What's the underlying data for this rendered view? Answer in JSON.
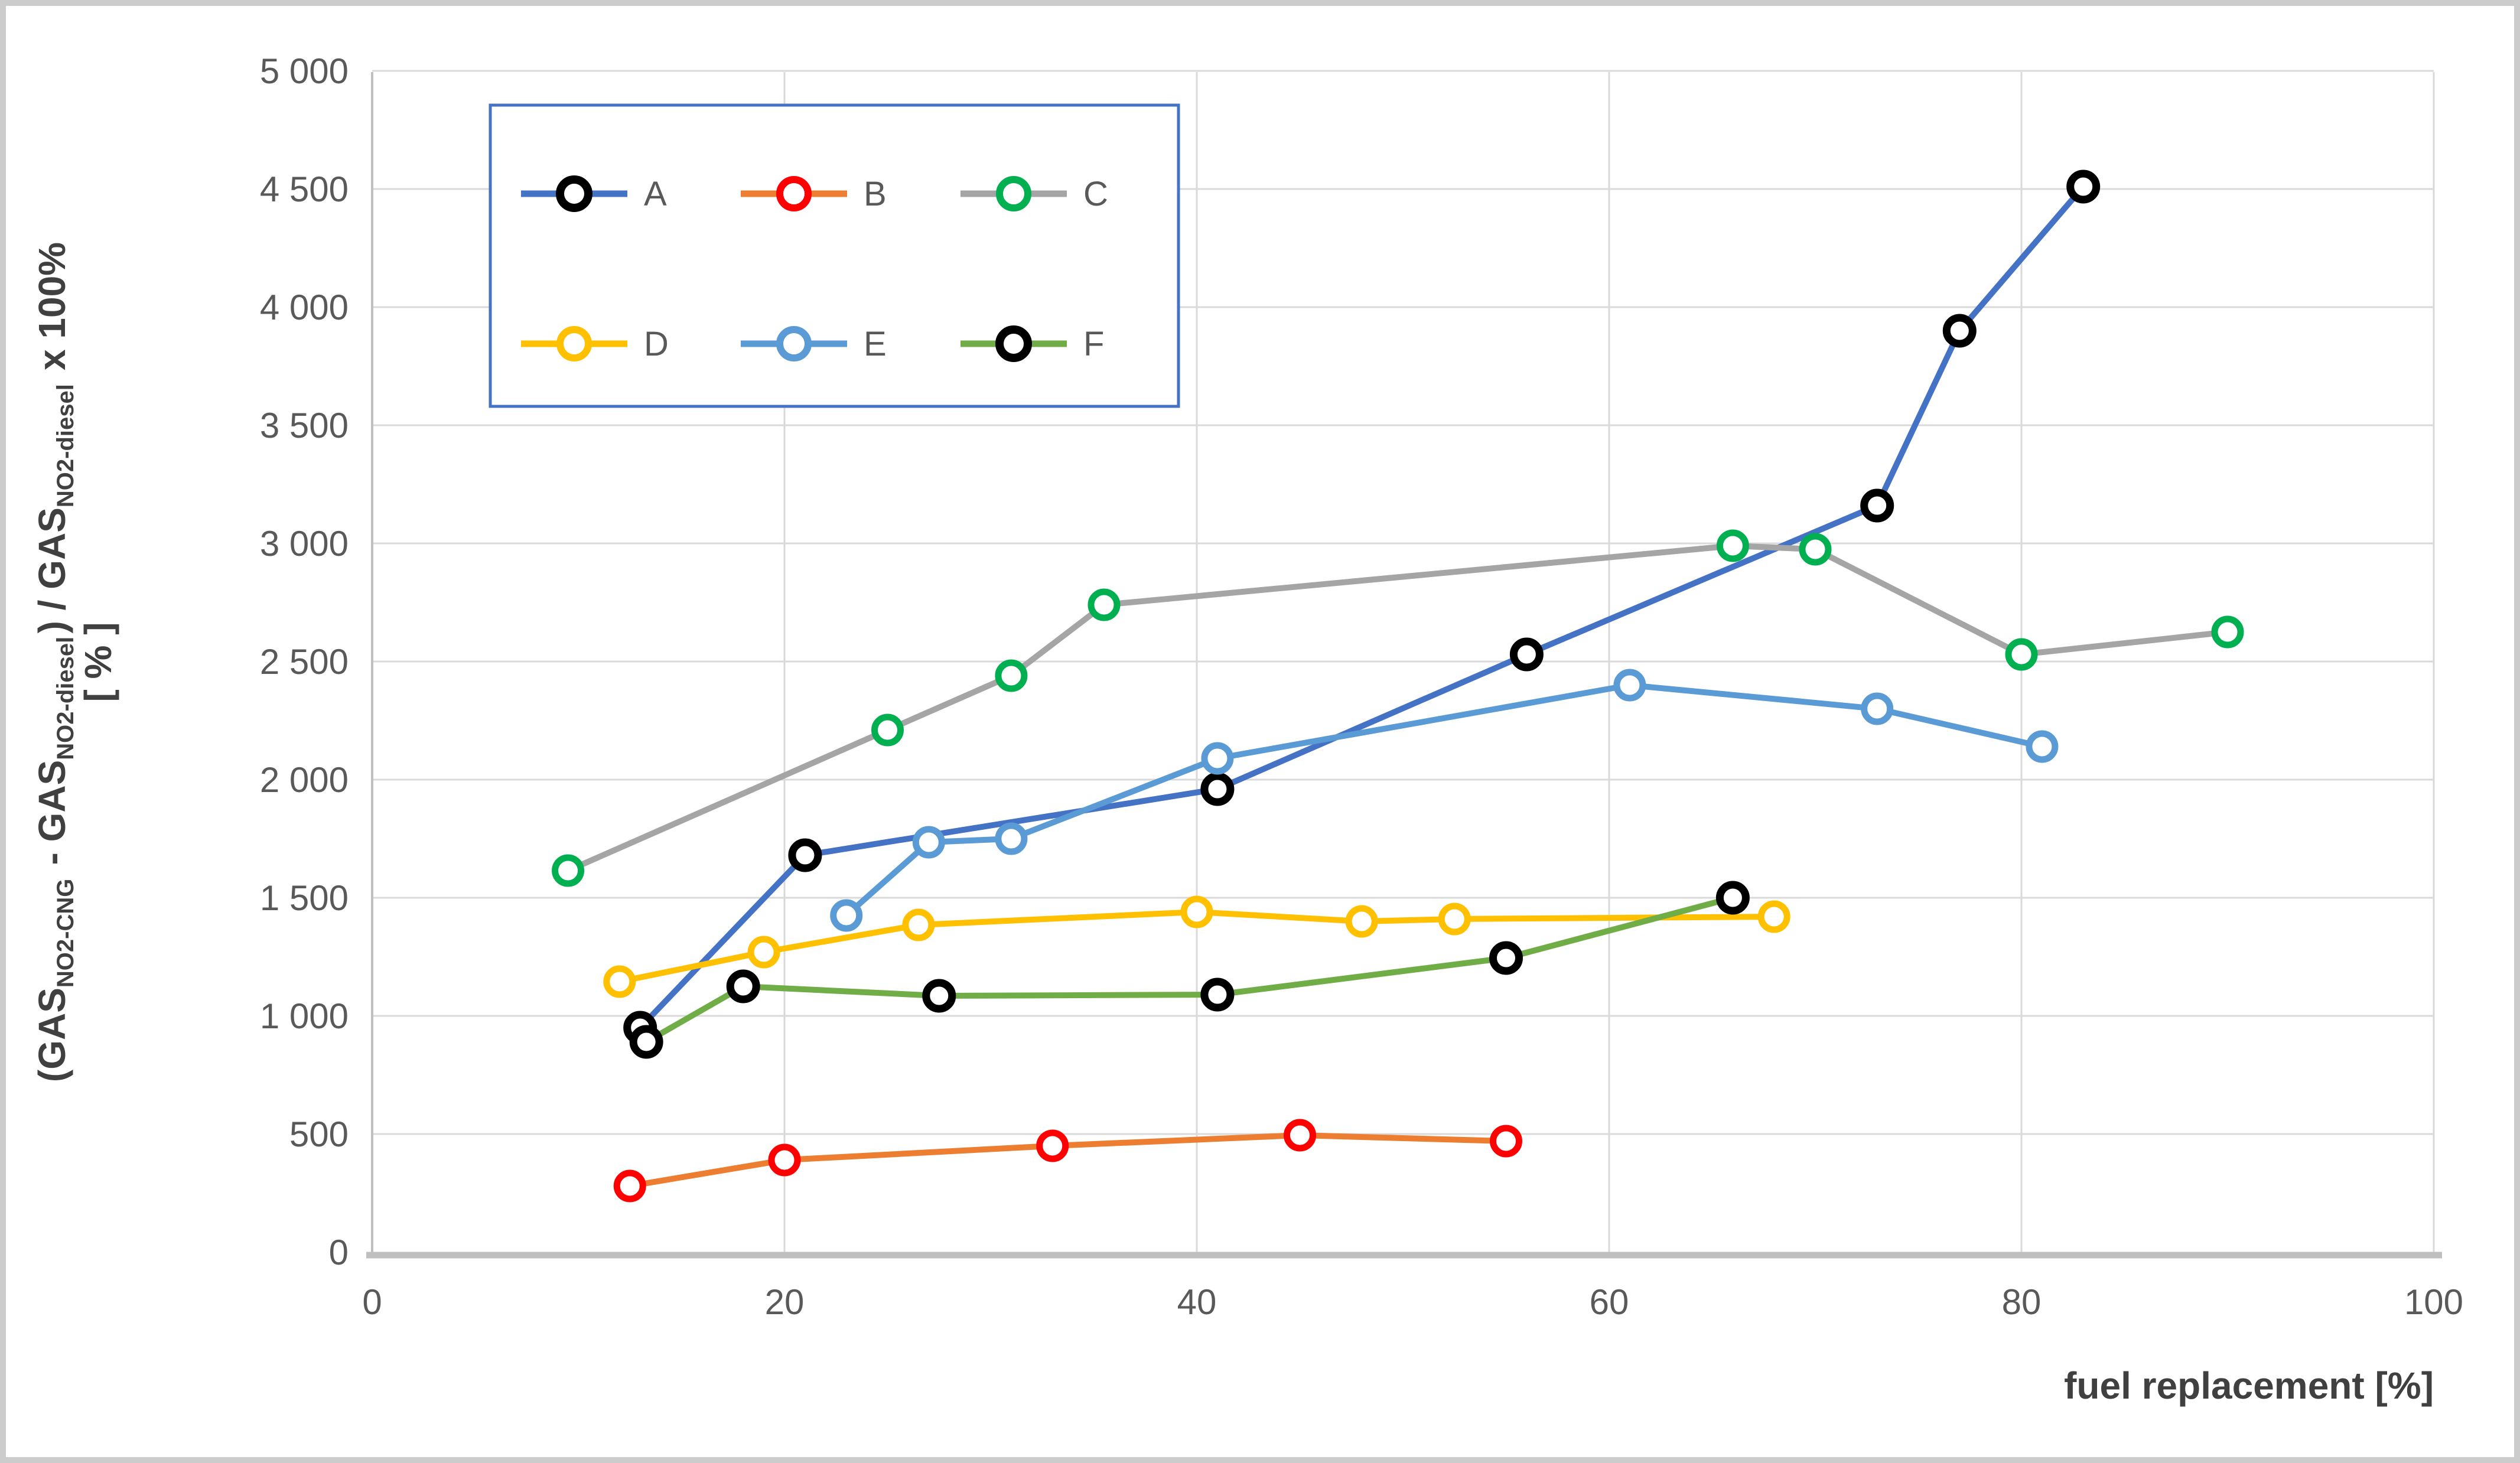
{
  "chart_data": {
    "type": "line",
    "title": "",
    "xlabel": "fuel replacement [%]",
    "ylabel_line1_segments": [
      {
        "t": "(GAS"
      },
      {
        "t": "NO2-CNG",
        "sub": true
      },
      {
        "t": " - GAS"
      },
      {
        "t": "NO2-diesel",
        "sub": true
      },
      {
        "t": ") / GAS"
      },
      {
        "t": "NO2-diesel",
        "sub": true
      },
      {
        "t": " x 100%"
      }
    ],
    "ylabel_line2": "[ % ]",
    "xlim": [
      0,
      100
    ],
    "ylim": [
      0,
      5000
    ],
    "grid": true,
    "legend_position": "inside-top-left",
    "x_ticks": [
      {
        "v": 0,
        "label": "0"
      },
      {
        "v": 20,
        "label": "20"
      },
      {
        "v": 40,
        "label": "40"
      },
      {
        "v": 60,
        "label": "60"
      },
      {
        "v": 80,
        "label": "80"
      },
      {
        "v": 100,
        "label": "100"
      }
    ],
    "y_ticks": [
      {
        "v": 5000,
        "label": "5 000"
      },
      {
        "v": 4500,
        "label": "4 500"
      },
      {
        "v": 4000,
        "label": "4 000"
      },
      {
        "v": 3500,
        "label": "3 500"
      },
      {
        "v": 3000,
        "label": "3 000"
      },
      {
        "v": 2500,
        "label": "2 500"
      },
      {
        "v": 2000,
        "label": "2 000"
      },
      {
        "v": 1500,
        "label": "1 500"
      },
      {
        "v": 1000,
        "label": "1 000"
      },
      {
        "v": 500,
        "label": "500"
      },
      {
        "v": 0,
        "label": "0"
      }
    ],
    "series": [
      {
        "name": "A",
        "line_color": "#4472C4",
        "marker_color": "#000000",
        "points": [
          [
            13,
            950
          ],
          [
            21,
            1680
          ],
          [
            41,
            1960
          ],
          [
            56,
            2530
          ],
          [
            73,
            3160
          ],
          [
            77,
            3900
          ],
          [
            83,
            4510
          ]
        ]
      },
      {
        "name": "B",
        "line_color": "#ED7D31",
        "marker_color": "#FF0000",
        "points": [
          [
            12.5,
            280
          ],
          [
            20,
            390
          ],
          [
            33,
            450
          ],
          [
            45,
            495
          ],
          [
            55,
            470
          ]
        ]
      },
      {
        "name": "C",
        "line_color": "#A5A5A5",
        "marker_color": "#00B050",
        "points": [
          [
            9.5,
            1615
          ],
          [
            25,
            2210
          ],
          [
            31,
            2440
          ],
          [
            35.5,
            2740
          ],
          [
            66,
            2990
          ],
          [
            70,
            2975
          ],
          [
            80,
            2530
          ],
          [
            90,
            2625
          ]
        ]
      },
      {
        "name": "D",
        "line_color": "#FFC000",
        "marker_color": "#FFC000",
        "points": [
          [
            12,
            1145
          ],
          [
            19,
            1270
          ],
          [
            26.5,
            1385
          ],
          [
            40,
            1440
          ],
          [
            48,
            1400
          ],
          [
            52.5,
            1410
          ],
          [
            68,
            1420
          ]
        ]
      },
      {
        "name": "E",
        "line_color": "#5B9BD5",
        "marker_color": "#5B9BD5",
        "points": [
          [
            23,
            1425
          ],
          [
            27,
            1735
          ],
          [
            31,
            1750
          ],
          [
            41,
            2090
          ],
          [
            61,
            2400
          ],
          [
            73,
            2300
          ],
          [
            81,
            2140
          ]
        ]
      },
      {
        "name": "F",
        "line_color": "#70AD47",
        "marker_color": "#000000",
        "points": [
          [
            13.3,
            890
          ],
          [
            18,
            1125
          ],
          [
            27.5,
            1085
          ],
          [
            41,
            1090
          ],
          [
            55,
            1245
          ],
          [
            66,
            1500
          ]
        ]
      }
    ],
    "legend_items": [
      {
        "label": "A",
        "line_color": "#4472C4",
        "marker_color": "#000000"
      },
      {
        "label": "B",
        "line_color": "#ED7D31",
        "marker_color": "#FF0000"
      },
      {
        "label": "C",
        "line_color": "#A5A5A5",
        "marker_color": "#00B050"
      },
      {
        "label": "D",
        "line_color": "#FFC000",
        "marker_color": "#FFC000"
      },
      {
        "label": "E",
        "line_color": "#5B9BD5",
        "marker_color": "#5B9BD5"
      },
      {
        "label": "F",
        "line_color": "#70AD47",
        "marker_color": "#000000"
      }
    ],
    "colors": {
      "gridline": "#D9D9D9",
      "axis_line": "#BFBFBF",
      "tick_label": "#595959",
      "axis_title": "#404040",
      "legend_border": "#4472C4",
      "legend_label": "#595959",
      "frame": "#CCCCCC",
      "background": "#FFFFFF",
      "marker_fill": "#FFFFFF"
    }
  }
}
